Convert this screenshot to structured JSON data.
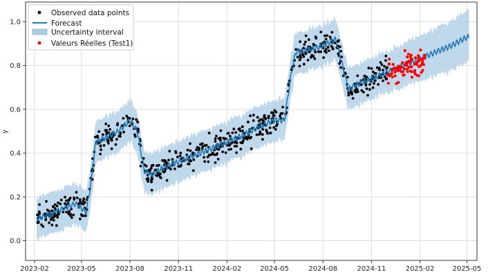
{
  "chart_data": {
    "type": "scatter",
    "title": "",
    "xlabel": "",
    "ylabel": "y",
    "grid": true,
    "legend_position": "top-left",
    "xlim": [
      "2023-01-15",
      "2025-05-20"
    ],
    "ylim": [
      -0.09,
      1.09
    ],
    "x_ticks": [
      "2023-02",
      "2023-05",
      "2023-08",
      "2023-11",
      "2024-02",
      "2024-05",
      "2024-08",
      "2024-11",
      "2025-02",
      "2025-05"
    ],
    "y_ticks": [
      0.0,
      0.2,
      0.4,
      0.6,
      0.8,
      1.0
    ],
    "legend": {
      "observed": "Observed data points",
      "forecast": "Forecast",
      "interval": "Uncertainty interval",
      "real": "Valeurs Réelles (Test1)"
    },
    "colors": {
      "observed": "#000000",
      "forecast": "#1f77b4",
      "interval": "#a9cbe6",
      "real": "#ff0000",
      "grid": "#dddddd"
    },
    "forecast_series": {
      "name": "Forecast",
      "x": [
        "2023-02-05",
        "2023-03-01",
        "2023-04-01",
        "2023-04-20",
        "2023-05-10",
        "2023-05-20",
        "2023-05-28",
        "2023-06-15",
        "2023-07-10",
        "2023-08-01",
        "2023-08-15",
        "2023-08-28",
        "2023-09-10",
        "2023-10-01",
        "2023-11-01",
        "2023-12-01",
        "2024-01-01",
        "2024-02-01",
        "2024-03-01",
        "2024-04-01",
        "2024-05-01",
        "2024-05-20",
        "2024-06-01",
        "2024-06-10",
        "2024-07-01",
        "2024-08-01",
        "2024-08-25",
        "2024-09-05",
        "2024-09-18",
        "2024-10-01",
        "2024-11-01",
        "2024-12-01",
        "2025-01-01",
        "2025-02-01",
        "2025-03-01",
        "2025-04-01",
        "2025-05-01",
        "2025-05-05"
      ],
      "y": [
        0.1,
        0.12,
        0.15,
        0.17,
        0.13,
        0.28,
        0.45,
        0.47,
        0.5,
        0.55,
        0.5,
        0.32,
        0.3,
        0.33,
        0.36,
        0.39,
        0.42,
        0.45,
        0.48,
        0.52,
        0.55,
        0.55,
        0.75,
        0.86,
        0.87,
        0.89,
        0.92,
        0.82,
        0.69,
        0.71,
        0.74,
        0.77,
        0.8,
        0.83,
        0.86,
        0.89,
        0.93,
        0.93
      ]
    },
    "interval_halfwidth": 0.095,
    "observed_x_range": [
      "2023-02-05",
      "2024-12-01"
    ],
    "observed_count": 640,
    "real_series": {
      "name": "Valeurs Réelles (Test1)",
      "x_range": [
        "2024-12-01",
        "2025-02-10"
      ],
      "y_range": [
        0.65,
        0.91
      ],
      "count": 85
    }
  }
}
